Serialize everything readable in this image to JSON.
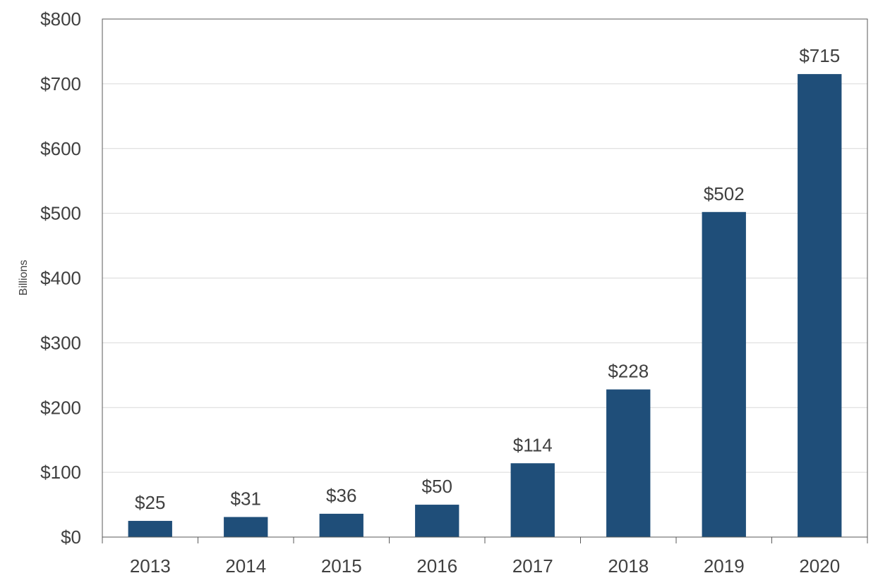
{
  "chart_data": {
    "type": "bar",
    "title": "",
    "xlabel": "",
    "ylabel": "Billions",
    "categories": [
      "2013",
      "2014",
      "2015",
      "2016",
      "2017",
      "2018",
      "2019",
      "2020"
    ],
    "values": [
      25,
      31,
      36,
      50,
      114,
      228,
      502,
      715
    ],
    "data_labels": [
      "$25",
      "$31",
      "$36",
      "$50",
      "$114",
      "$228",
      "$502",
      "$715"
    ],
    "ylim": [
      0,
      800
    ],
    "yticks": [
      0,
      100,
      200,
      300,
      400,
      500,
      600,
      700,
      800
    ],
    "ytick_labels": [
      "$0",
      "$100",
      "$200",
      "$300",
      "$400",
      "$500",
      "$600",
      "$700",
      "$800"
    ],
    "grid": true,
    "legend": "none",
    "colors": {
      "bar": "#1f4e79"
    }
  }
}
